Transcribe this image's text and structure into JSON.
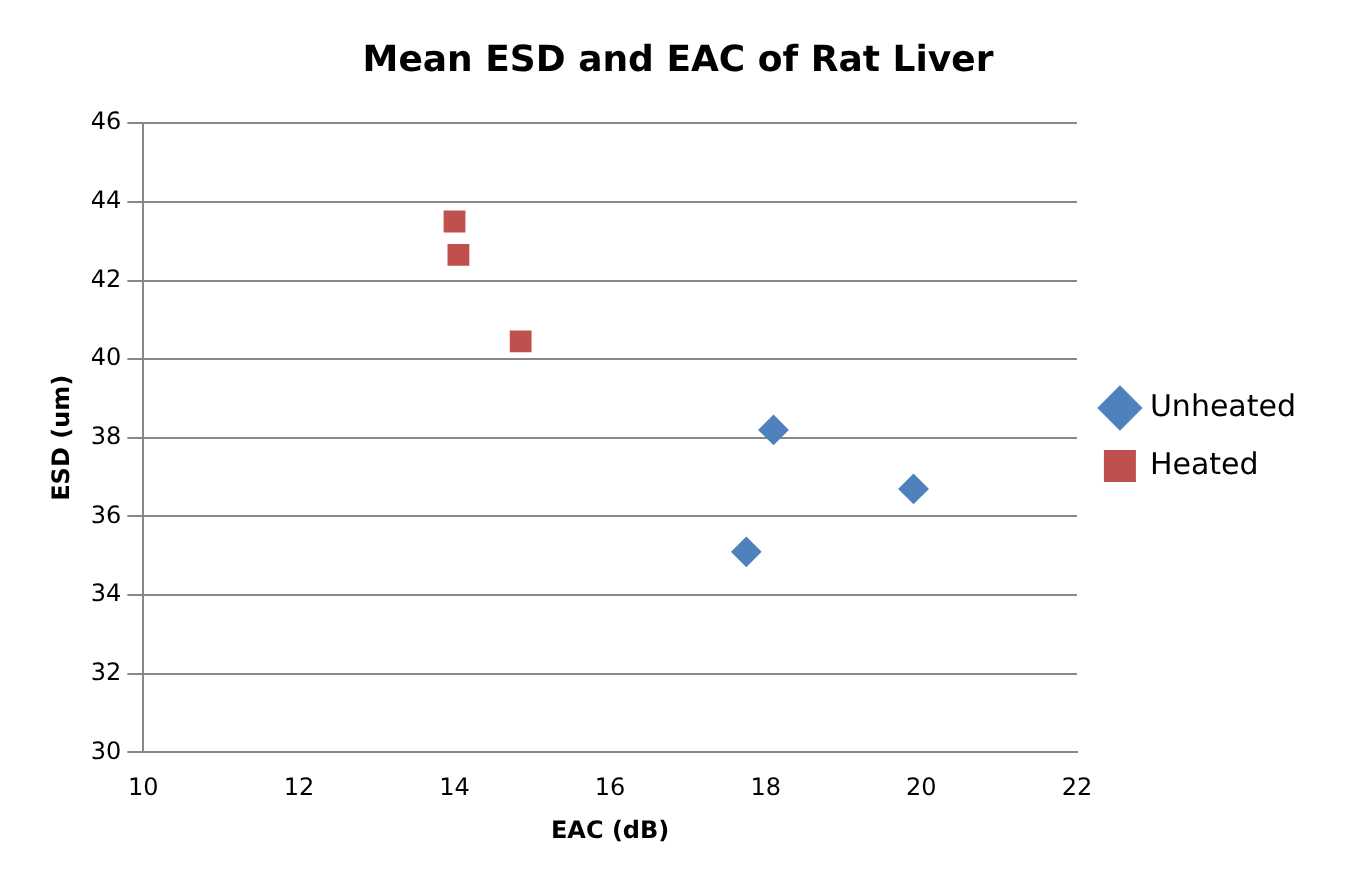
{
  "chart_data": {
    "type": "scatter",
    "title": "Mean ESD and EAC of Rat Liver",
    "xlabel": "EAC (dB)",
    "ylabel": "ESD (um)",
    "series": [
      {
        "name": "Unheated",
        "color": "#4f81bd",
        "marker": "diamond",
        "x": [
          18.1,
          17.75,
          19.9
        ],
        "values": [
          38.2,
          35.1,
          36.7
        ]
      },
      {
        "name": "Heated",
        "color": "#c0504d",
        "marker": "square",
        "x": [
          14.0,
          14.05,
          14.85
        ],
        "values": [
          43.5,
          42.65,
          40.45
        ]
      }
    ],
    "xlim": [
      10,
      22
    ],
    "xticks": [
      10,
      12,
      14,
      16,
      18,
      20,
      22
    ],
    "ylim": [
      30,
      46
    ],
    "yticks": [
      30,
      32,
      34,
      36,
      38,
      40,
      42,
      44,
      46
    ],
    "grid": "y",
    "legend": "right"
  }
}
